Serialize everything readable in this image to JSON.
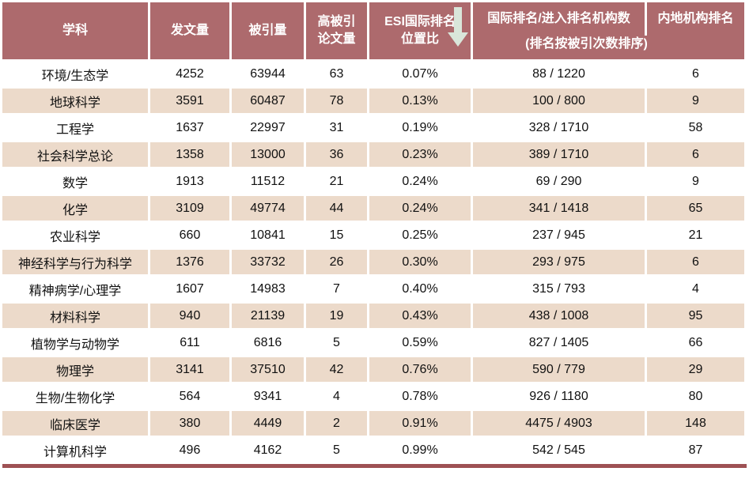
{
  "header": {
    "subject": "学科",
    "publications": "发文量",
    "citations": "被引量",
    "highly_cited": [
      "高被引",
      "论文量"
    ],
    "esi": [
      "ESI国际排名",
      "位置比"
    ],
    "esi_sort_icon": "down-arrow-icon",
    "intl": "国际排名/进入排名机构数",
    "intl_note": "(排名按被引次数排序)",
    "mainland": "内地机构排名"
  },
  "colors": {
    "header_bg": "#ad6a6d",
    "row_alt_bg": "#ecdaca",
    "bottom_bar": "#9e5154",
    "arrow": "#d9e6da",
    "body_text": "#111111",
    "header_text": "#ffffff"
  },
  "chart_data": {
    "type": "table",
    "columns": [
      "学科",
      "发文量",
      "被引量",
      "高被引论文量",
      "ESI国际排名位置比",
      "国际排名/进入排名机构数 (排名按被引次数排序)",
      "内地机构排名"
    ],
    "rows": [
      [
        "环境/生态学",
        "4252",
        "63944",
        "63",
        "0.07%",
        "88 / 1220",
        "6"
      ],
      [
        "地球科学",
        "3591",
        "60487",
        "78",
        "0.13%",
        "100 / 800",
        "9"
      ],
      [
        "工程学",
        "1637",
        "22997",
        "31",
        "0.19%",
        "328 / 1710",
        "58"
      ],
      [
        "社会科学总论",
        "1358",
        "13000",
        "36",
        "0.23%",
        "389 / 1710",
        "6"
      ],
      [
        "数学",
        "1913",
        "11512",
        "21",
        "0.24%",
        "69 / 290",
        "9"
      ],
      [
        "化学",
        "3109",
        "49774",
        "44",
        "0.24%",
        "341 / 1418",
        "65"
      ],
      [
        "农业科学",
        "660",
        "10841",
        "15",
        "0.25%",
        "237 / 945",
        "21"
      ],
      [
        "神经科学与行为科学",
        "1376",
        "33732",
        "26",
        "0.30%",
        "293 / 975",
        "6"
      ],
      [
        "精神病学/心理学",
        "1607",
        "14983",
        "7",
        "0.40%",
        "315 / 793",
        "4"
      ],
      [
        "材料科学",
        "940",
        "21139",
        "19",
        "0.43%",
        "438 / 1008",
        "95"
      ],
      [
        "植物学与动物学",
        "611",
        "6816",
        "5",
        "0.59%",
        "827 / 1405",
        "66"
      ],
      [
        "物理学",
        "3141",
        "37510",
        "42",
        "0.76%",
        "590 / 779",
        "29"
      ],
      [
        "生物/生物化学",
        "564",
        "9341",
        "4",
        "0.78%",
        "926 / 1180",
        "80"
      ],
      [
        "临床医学",
        "380",
        "4449",
        "2",
        "0.91%",
        "4475 / 4903",
        "148"
      ],
      [
        "计算机科学",
        "496",
        "4162",
        "5",
        "0.99%",
        "542 / 545",
        "87"
      ]
    ],
    "sort": "ascending by ESI国际排名位置比 (indicated by down arrow in header)",
    "legend_position": "none",
    "grid": "alternating row shading, white column separators"
  }
}
